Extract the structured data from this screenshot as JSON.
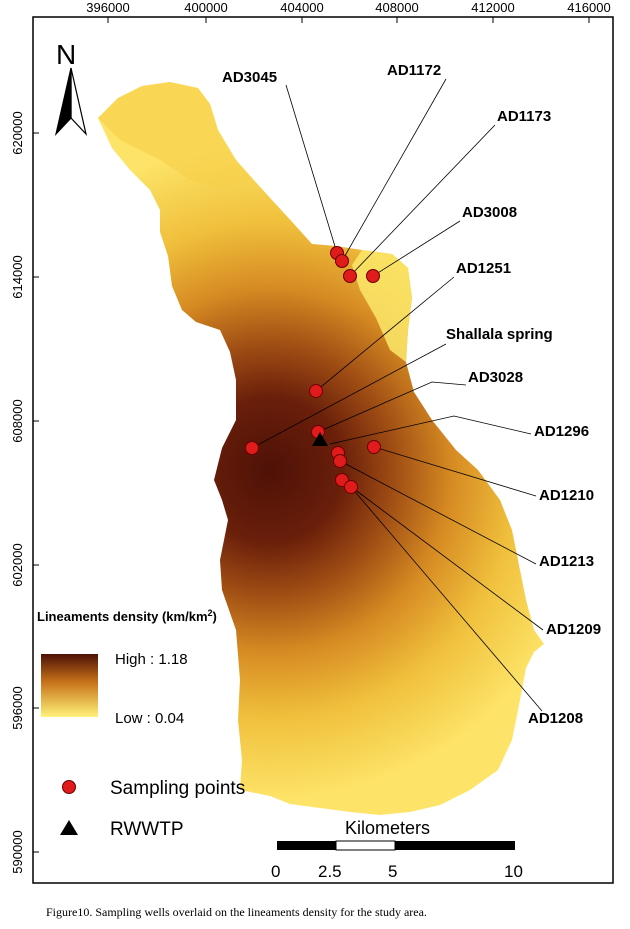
{
  "map": {
    "x_ticks": [
      "396000",
      "400000",
      "404000",
      "408000",
      "412000",
      "416000"
    ],
    "y_ticks": [
      "620000",
      "614000",
      "608000",
      "602000",
      "596000",
      "590000"
    ],
    "north_label": "N",
    "wells": [
      {
        "label": "AD3045",
        "type": "sampling"
      },
      {
        "label": "AD1172",
        "type": "sampling"
      },
      {
        "label": "AD1173",
        "type": "sampling"
      },
      {
        "label": "AD3008",
        "type": "sampling"
      },
      {
        "label": "AD1251",
        "type": "sampling"
      },
      {
        "label": "Shallala spring",
        "type": "sampling"
      },
      {
        "label": "AD3028",
        "type": "sampling"
      },
      {
        "label": "AD1296",
        "type": "sampling"
      },
      {
        "label": "AD1210",
        "type": "sampling"
      },
      {
        "label": "AD1213",
        "type": "sampling"
      },
      {
        "label": "AD1209",
        "type": "sampling"
      },
      {
        "label": "AD1208",
        "type": "sampling"
      }
    ],
    "legend": {
      "title": "Lineaments density (km/km",
      "title_sup": "2",
      "title_end": ")",
      "high": "High : 1.18",
      "low": "Low : 0.04",
      "sampling": "Sampling points",
      "rwwtp": "RWWTP"
    },
    "colors": {
      "high": "#5a1508",
      "mid": "#c8731a",
      "low": "#fff27a",
      "point": "#e01b1b"
    },
    "scale_bar": {
      "title": "Kilometers",
      "labels": [
        "0",
        "2.5",
        "5",
        "10"
      ]
    }
  },
  "caption": "Figure10. Sampling wells overlaid on the lineaments density for the study area."
}
